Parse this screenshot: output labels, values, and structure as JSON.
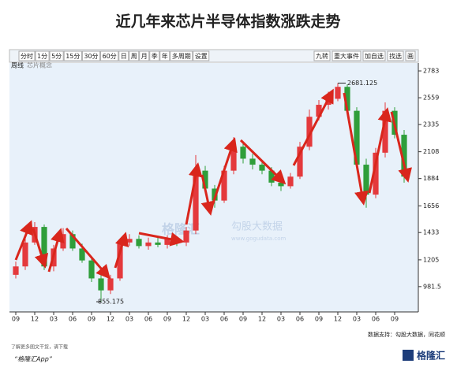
{
  "chart_data": {
    "type": "candlestick",
    "title": "近几年来芯片半导体指数涨跌走势",
    "legend": [
      "周线",
      "芯片概念"
    ],
    "categories": [
      "09",
      null,
      "12",
      null,
      "03",
      null,
      "06",
      null,
      "09",
      null,
      "12",
      null,
      "03",
      null,
      "06",
      null,
      "09",
      null,
      "12",
      null,
      "03",
      null,
      "06",
      null,
      "09",
      null,
      "12",
      null,
      "03",
      null,
      "06",
      null,
      "09",
      null,
      "12",
      null,
      "03",
      null,
      "06",
      null,
      "09",
      null
    ],
    "open": [
      1080,
      1150,
      1350,
      1480,
      1150,
      1300,
      1420,
      1300,
      1200,
      1050,
      950,
      1050,
      1350,
      1380,
      1320,
      1350,
      1330,
      1380,
      1350,
      1450,
      1950,
      1800,
      1700,
      1950,
      2150,
      2050,
      2000,
      1950,
      1850,
      1820,
      1900,
      2150,
      2400,
      2500,
      2550,
      2650,
      2450,
      2000,
      1750,
      2100,
      2450,
      2250
    ],
    "high": [
      1190,
      1400,
      1520,
      1500,
      1330,
      1470,
      1450,
      1340,
      1230,
      1080,
      1080,
      1380,
      1420,
      1410,
      1390,
      1390,
      1410,
      1400,
      1480,
      2080,
      1990,
      1830,
      1990,
      2230,
      2190,
      2090,
      2040,
      1980,
      1880,
      1930,
      2190,
      2460,
      2540,
      2610,
      2681.125,
      2670,
      2480,
      2050,
      2140,
      2520,
      2480,
      2290
    ],
    "low": [
      1050,
      1120,
      1330,
      1120,
      1110,
      1280,
      1280,
      1180,
      1020,
      855.175,
      920,
      1030,
      1320,
      1300,
      1290,
      1310,
      1300,
      1320,
      1320,
      1420,
      1780,
      1640,
      1680,
      1920,
      2010,
      1960,
      1920,
      1820,
      1780,
      1800,
      1880,
      2120,
      2370,
      2460,
      2530,
      2420,
      1980,
      1640,
      1720,
      2060,
      2220,
      1850
    ],
    "close": [
      1150,
      1350,
      1480,
      1150,
      1300,
      1420,
      1300,
      1200,
      1050,
      950,
      1050,
      1350,
      1380,
      1320,
      1350,
      1330,
      1380,
      1350,
      1450,
      1950,
      1800,
      1700,
      1950,
      2150,
      2050,
      2000,
      1950,
      1850,
      1820,
      1900,
      2150,
      2400,
      2500,
      2550,
      2650,
      2450,
      2000,
      1750,
      2100,
      2450,
      2250,
      1900
    ],
    "ylim": [
      770,
      2849
    ],
    "yticks": [
      981.5,
      1205,
      1433,
      1656,
      1884,
      2108,
      2335,
      2559,
      2783
    ],
    "up_color": "#e4393c",
    "down_color": "#2f9e3a",
    "max_label": "2681.125",
    "min_label": "855.175",
    "source": "数据支持：勾股大数据，同花顺"
  },
  "toolbar": {
    "left": [
      "分时",
      "1分",
      "5分",
      "15分",
      "30分",
      "60分",
      "日",
      "周",
      "月",
      "季",
      "年",
      "多周期",
      "设置"
    ],
    "right": [
      "九转",
      "重大事件",
      "加自选",
      "找选",
      "画"
    ]
  },
  "watermark": [
    "格隆汇",
    "勾股大数据",
    "www.gogudata.com"
  ],
  "footer": {
    "note": "了解更多图文干货，请下载",
    "app": "“格隆汇App”",
    "logo": "格隆汇"
  }
}
